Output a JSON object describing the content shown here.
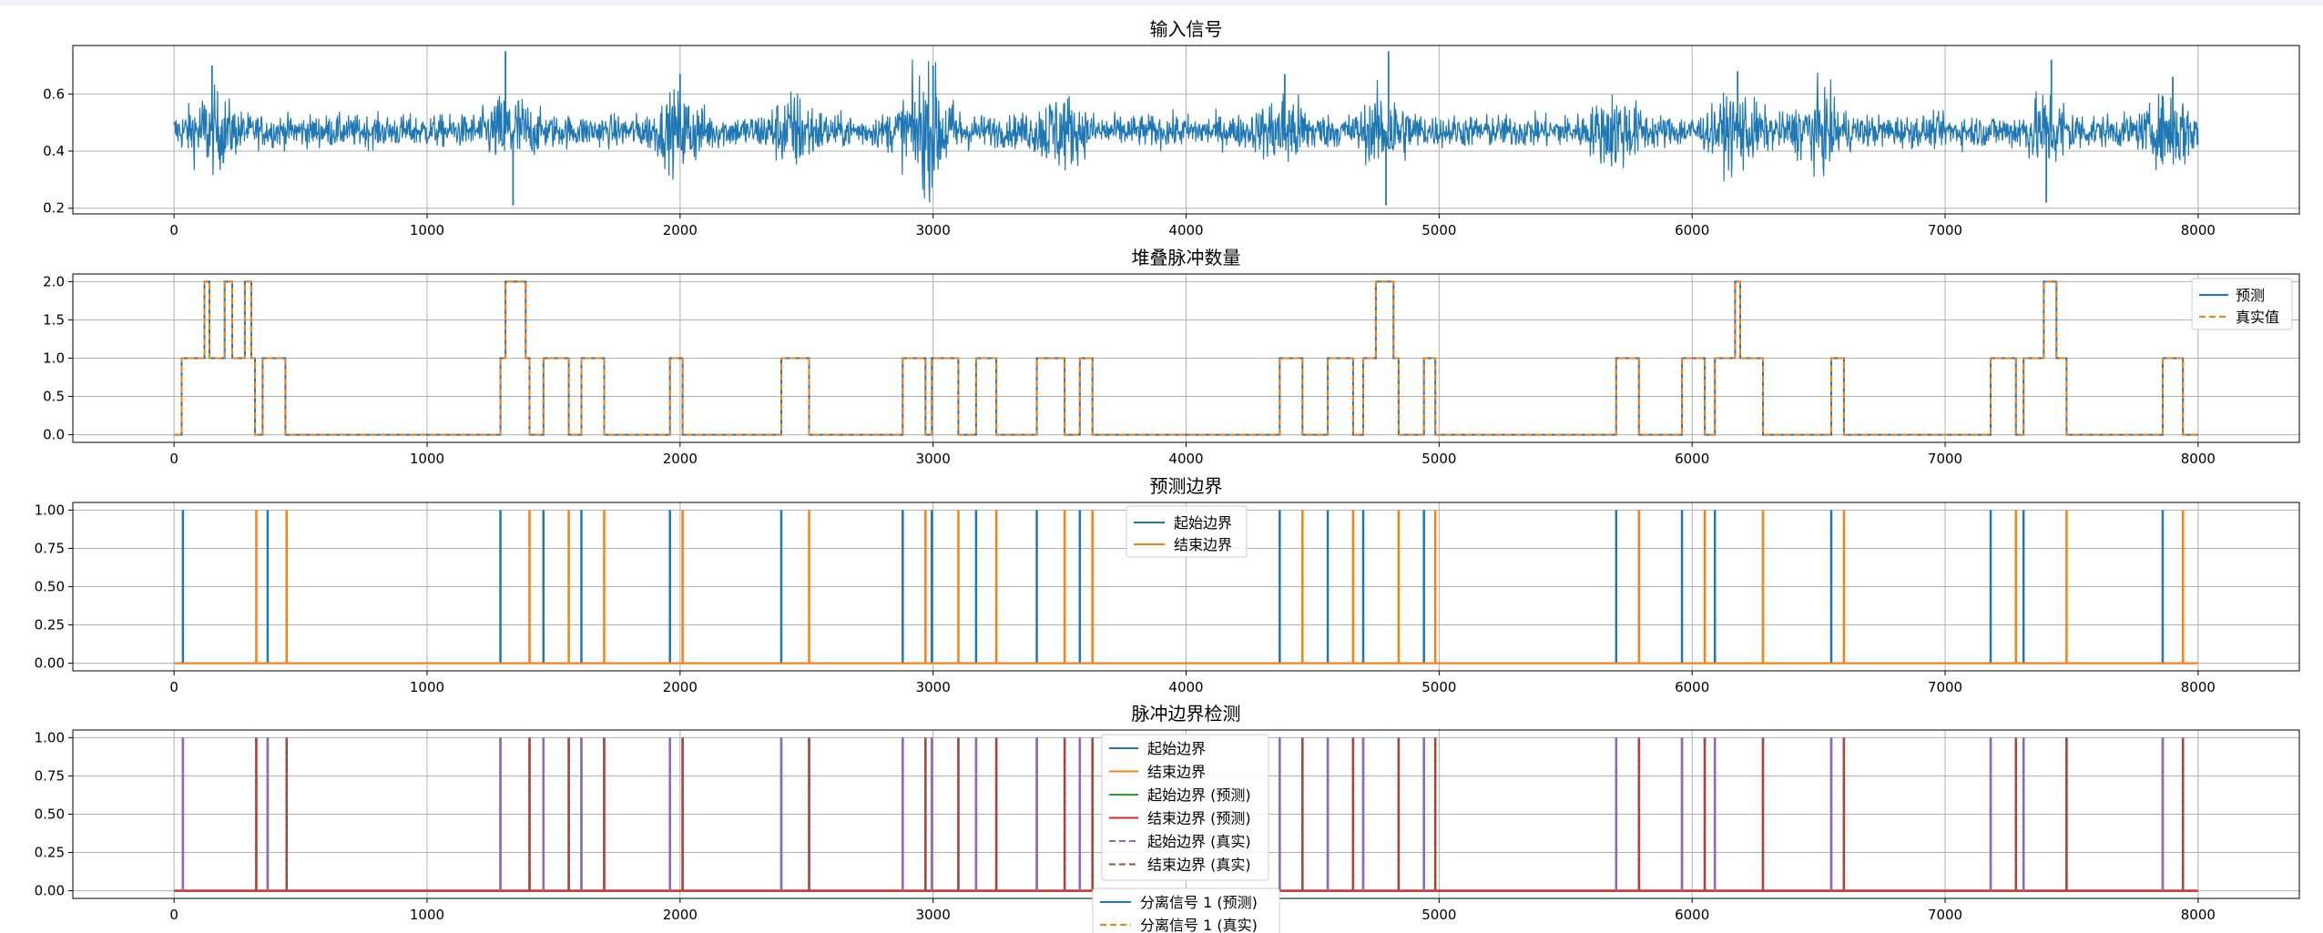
{
  "chart_data": [
    {
      "type": "line",
      "title": "输入信号",
      "xlabel": "",
      "ylabel": "",
      "xlim": [
        -400,
        8400
      ],
      "ylim": [
        0.18,
        0.77
      ],
      "xticks": [
        0,
        1000,
        2000,
        3000,
        4000,
        5000,
        6000,
        7000,
        8000
      ],
      "yticks": [
        0.2,
        0.4,
        0.6
      ],
      "ytick_labels": [
        "0.2",
        "0.4",
        "0.6"
      ],
      "grid": true,
      "signal": {
        "length": 8000,
        "baseline": 0.47,
        "noise_amplitude": 0.05,
        "burst_peaks": [
          {
            "x": 150,
            "y": 0.7
          },
          {
            "x": 1310,
            "y": 0.75
          },
          {
            "x": 1340,
            "y": 0.21
          },
          {
            "x": 2000,
            "y": 0.67
          },
          {
            "x": 3000,
            "y": 0.7
          },
          {
            "x": 4390,
            "y": 0.67
          },
          {
            "x": 4800,
            "y": 0.75
          },
          {
            "x": 4790,
            "y": 0.21
          },
          {
            "x": 6180,
            "y": 0.68
          },
          {
            "x": 7420,
            "y": 0.72
          },
          {
            "x": 7400,
            "y": 0.22
          },
          {
            "x": 7900,
            "y": 0.66
          }
        ]
      },
      "series": [
        {
          "name": "",
          "color": "#1f77b4"
        }
      ]
    },
    {
      "type": "line",
      "title": "堆叠脉冲数量",
      "xlim": [
        -400,
        8400
      ],
      "ylim": [
        -0.1,
        2.1
      ],
      "xticks": [
        0,
        1000,
        2000,
        3000,
        4000,
        5000,
        6000,
        7000,
        8000
      ],
      "yticks": [
        0,
        0.5,
        1,
        1.5,
        2
      ],
      "ytick_labels": [
        "0.0",
        "0.5",
        "1.0",
        "1.5",
        "2.0"
      ],
      "grid": true,
      "legend_position": "top-right",
      "steps": [
        [
          0,
          0
        ],
        [
          30,
          1
        ],
        [
          120,
          2
        ],
        [
          140,
          1
        ],
        [
          200,
          2
        ],
        [
          230,
          1
        ],
        [
          280,
          2
        ],
        [
          305,
          1
        ],
        [
          320,
          0
        ],
        [
          350,
          1
        ],
        [
          440,
          0
        ],
        [
          1290,
          1
        ],
        [
          1310,
          2
        ],
        [
          1390,
          1
        ],
        [
          1405,
          0
        ],
        [
          1460,
          1
        ],
        [
          1560,
          0
        ],
        [
          1610,
          1
        ],
        [
          1700,
          0
        ],
        [
          1960,
          1
        ],
        [
          2010,
          0
        ],
        [
          2400,
          1
        ],
        [
          2510,
          0
        ],
        [
          2880,
          1
        ],
        [
          2970,
          0
        ],
        [
          2995,
          1
        ],
        [
          3100,
          0
        ],
        [
          3170,
          1
        ],
        [
          3250,
          0
        ],
        [
          3410,
          1
        ],
        [
          3520,
          0
        ],
        [
          3580,
          1
        ],
        [
          3630,
          0
        ],
        [
          4370,
          1
        ],
        [
          4460,
          0
        ],
        [
          4560,
          1
        ],
        [
          4660,
          0
        ],
        [
          4700,
          1
        ],
        [
          4750,
          2
        ],
        [
          4820,
          1
        ],
        [
          4840,
          0
        ],
        [
          4940,
          1
        ],
        [
          4985,
          0
        ],
        [
          5700,
          1
        ],
        [
          5790,
          0
        ],
        [
          5960,
          1
        ],
        [
          6050,
          0
        ],
        [
          6090,
          1
        ],
        [
          6170,
          2
        ],
        [
          6190,
          1
        ],
        [
          6280,
          0
        ],
        [
          6550,
          1
        ],
        [
          6600,
          0
        ],
        [
          7180,
          1
        ],
        [
          7280,
          0
        ],
        [
          7310,
          1
        ],
        [
          7390,
          2
        ],
        [
          7440,
          1
        ],
        [
          7480,
          0
        ],
        [
          7860,
          1
        ],
        [
          7940,
          0
        ],
        [
          8000,
          0
        ]
      ],
      "series": [
        {
          "name": "预测",
          "color": "#1f77b4",
          "dash": "solid"
        },
        {
          "name": "真实值",
          "color": "#ff7f0e",
          "dash": "dashed"
        }
      ]
    },
    {
      "type": "line",
      "title": "预测边界",
      "xlim": [
        -400,
        8400
      ],
      "ylim": [
        -0.05,
        1.05
      ],
      "xticks": [
        0,
        1000,
        2000,
        3000,
        4000,
        5000,
        6000,
        7000,
        8000
      ],
      "yticks": [
        0,
        0.25,
        0.5,
        0.75,
        1
      ],
      "ytick_labels": [
        "0.00",
        "0.25",
        "0.50",
        "0.75",
        "1.00"
      ],
      "grid": true,
      "legend_position": "top-center",
      "start_boundaries": [
        35,
        370,
        1290,
        1460,
        1610,
        1960,
        2400,
        2880,
        2995,
        3170,
        3410,
        3580,
        4370,
        4560,
        4700,
        4940,
        5700,
        5960,
        6090,
        6550,
        7180,
        7310,
        7860
      ],
      "end_boundaries": [
        325,
        445,
        1405,
        1560,
        1700,
        2010,
        2510,
        2970,
        3100,
        3250,
        3520,
        3630,
        4460,
        4660,
        4840,
        4985,
        5790,
        6050,
        6280,
        6600,
        7280,
        7480,
        7940
      ],
      "series": [
        {
          "name": "起始边界",
          "color": "#1f77b4",
          "dash": "solid"
        },
        {
          "name": "结束边界",
          "color": "#ff7f0e",
          "dash": "solid"
        }
      ]
    },
    {
      "type": "line",
      "title": "脉冲边界检测",
      "xlim": [
        -400,
        8400
      ],
      "ylim": [
        -0.05,
        1.05
      ],
      "xticks": [
        0,
        1000,
        2000,
        3000,
        4000,
        5000,
        6000,
        7000,
        8000
      ],
      "yticks": [
        0,
        0.25,
        0.5,
        0.75,
        1
      ],
      "ytick_labels": [
        "0.00",
        "0.25",
        "0.50",
        "0.75",
        "1.00"
      ],
      "grid": true,
      "legend_position": "top-center",
      "series": [
        {
          "name": "起始边界",
          "color": "#1f77b4",
          "dash": "solid"
        },
        {
          "name": "结束边界",
          "color": "#ff7f0e",
          "dash": "solid"
        },
        {
          "name": "起始边界 (预测)",
          "color": "#2ca02c",
          "dash": "solid"
        },
        {
          "name": "结束边界 (预测)",
          "color": "#d62728",
          "dash": "solid"
        },
        {
          "name": "起始边界 (真实)",
          "color": "#9467bd",
          "dash": "dashed"
        },
        {
          "name": "结束边界 (真实)",
          "color": "#8c564b",
          "dash": "dashed"
        }
      ],
      "overflow_legend": [
        {
          "name": "分离信号 1 (预测)",
          "color": "#1f77b4",
          "dash": "solid"
        },
        {
          "name": "分离信号 1 (真实)",
          "color": "#ff7f0e",
          "dash": "dashed"
        }
      ]
    }
  ]
}
